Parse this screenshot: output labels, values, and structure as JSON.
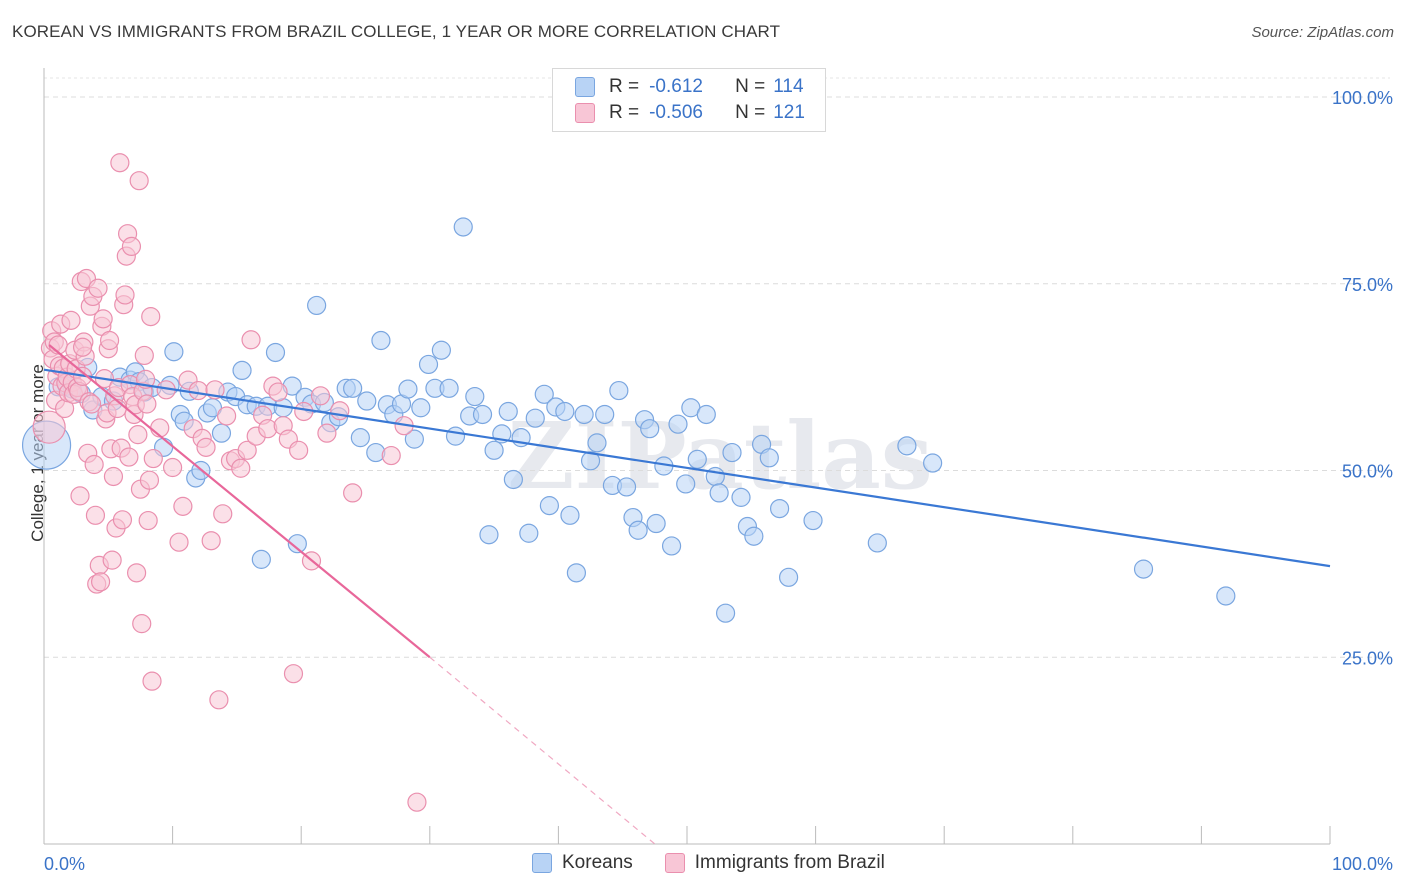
{
  "title": "KOREAN VS IMMIGRANTS FROM BRAZIL COLLEGE, 1 YEAR OR MORE CORRELATION CHART",
  "source": "Source: ZipAtlas.com",
  "watermark": "ZIPatlas",
  "legend": {
    "r_label": "R =",
    "n_label": "N =",
    "rows": [
      {
        "r": "-0.612",
        "n": "114",
        "fill": "#b8d3f5",
        "stroke": "#7aa6e0"
      },
      {
        "r": "-0.506",
        "n": "121",
        "fill": "#f8c6d6",
        "stroke": "#ea8fae"
      }
    ]
  },
  "bottom_legend": [
    {
      "label": "Koreans",
      "fill": "#b8d3f5",
      "stroke": "#7aa6e0"
    },
    {
      "label": "Immigrants from Brazil",
      "fill": "#f8c6d6",
      "stroke": "#ea8fae"
    }
  ],
  "chart_data": {
    "type": "scatter",
    "title": "KOREAN VS IMMIGRANTS FROM BRAZIL COLLEGE, 1 YEAR OR MORE CORRELATION CHART",
    "xlabel": "",
    "ylabel": "College, 1 year or more",
    "xlim": [
      0,
      100
    ],
    "ylim": [
      0,
      100
    ],
    "x_tick_labels": [
      "0.0%",
      "100.0%"
    ],
    "y_tick_labels": [
      "100.0%",
      "75.0%",
      "50.0%",
      "25.0%"
    ],
    "y_ticks": [
      100,
      75,
      50,
      25
    ],
    "grid": true,
    "legend_position": "top-center",
    "colors": {
      "koreans": "#3a78d4",
      "brazil": "#e8679a"
    },
    "series": [
      {
        "name": "Koreans",
        "color": "#3a78d4",
        "trend": {
          "x": [
            0,
            100
          ],
          "y": [
            63.5,
            37.2
          ]
        },
        "points": [
          [
            0.2,
            53.4
          ],
          [
            1.1,
            61.2
          ],
          [
            1.8,
            61.3
          ],
          [
            2.2,
            60.9
          ],
          [
            2.9,
            60.3
          ],
          [
            3.4,
            63.8
          ],
          [
            3.8,
            58.1
          ],
          [
            4.5,
            59.9
          ],
          [
            5.4,
            59.3
          ],
          [
            5.9,
            62.5
          ],
          [
            6.7,
            62.1
          ],
          [
            7.1,
            63.2
          ],
          [
            7.4,
            61.9
          ],
          [
            7.8,
            60.5
          ],
          [
            8.4,
            61.1
          ],
          [
            9.3,
            53.1
          ],
          [
            9.8,
            61.4
          ],
          [
            10.1,
            65.9
          ],
          [
            10.6,
            57.5
          ],
          [
            10.9,
            56.6
          ],
          [
            11.3,
            60.6
          ],
          [
            11.8,
            49.0
          ],
          [
            12.2,
            50.0
          ],
          [
            12.7,
            57.7
          ],
          [
            13.1,
            58.4
          ],
          [
            13.8,
            55.0
          ],
          [
            14.3,
            60.5
          ],
          [
            14.9,
            59.9
          ],
          [
            15.4,
            63.4
          ],
          [
            15.8,
            58.8
          ],
          [
            16.5,
            58.6
          ],
          [
            16.9,
            38.1
          ],
          [
            17.4,
            58.6
          ],
          [
            18.0,
            65.8
          ],
          [
            18.6,
            58.4
          ],
          [
            19.3,
            61.3
          ],
          [
            19.7,
            40.2
          ],
          [
            20.3,
            59.8
          ],
          [
            20.8,
            58.9
          ],
          [
            21.2,
            72.1
          ],
          [
            21.8,
            59.1
          ],
          [
            22.3,
            56.4
          ],
          [
            22.9,
            57.2
          ],
          [
            23.5,
            61.0
          ],
          [
            24.0,
            61.0
          ],
          [
            24.6,
            54.4
          ],
          [
            25.1,
            59.3
          ],
          [
            25.8,
            52.4
          ],
          [
            26.2,
            67.4
          ],
          [
            26.7,
            58.8
          ],
          [
            27.2,
            57.5
          ],
          [
            27.8,
            58.9
          ],
          [
            28.3,
            60.9
          ],
          [
            28.8,
            54.2
          ],
          [
            29.3,
            58.4
          ],
          [
            29.9,
            64.2
          ],
          [
            30.4,
            61.0
          ],
          [
            30.9,
            66.1
          ],
          [
            31.5,
            61.0
          ],
          [
            32.0,
            54.6
          ],
          [
            32.6,
            82.6
          ],
          [
            33.1,
            57.3
          ],
          [
            33.5,
            59.9
          ],
          [
            34.1,
            57.5
          ],
          [
            34.6,
            41.4
          ],
          [
            35.0,
            52.7
          ],
          [
            35.6,
            54.9
          ],
          [
            36.1,
            57.9
          ],
          [
            36.5,
            48.8
          ],
          [
            37.1,
            54.4
          ],
          [
            37.7,
            41.6
          ],
          [
            38.2,
            57.0
          ],
          [
            38.9,
            60.2
          ],
          [
            39.3,
            45.3
          ],
          [
            39.8,
            58.5
          ],
          [
            40.5,
            57.9
          ],
          [
            40.9,
            44.0
          ],
          [
            41.4,
            36.3
          ],
          [
            42.0,
            57.5
          ],
          [
            42.5,
            51.3
          ],
          [
            43.0,
            53.7
          ],
          [
            43.6,
            57.5
          ],
          [
            44.2,
            48.0
          ],
          [
            44.7,
            60.7
          ],
          [
            45.3,
            47.8
          ],
          [
            45.8,
            43.7
          ],
          [
            46.2,
            42.0
          ],
          [
            46.7,
            56.8
          ],
          [
            47.1,
            55.6
          ],
          [
            47.6,
            42.9
          ],
          [
            48.2,
            50.6
          ],
          [
            48.8,
            39.9
          ],
          [
            49.3,
            56.2
          ],
          [
            49.9,
            48.2
          ],
          [
            50.3,
            58.4
          ],
          [
            50.8,
            51.5
          ],
          [
            51.5,
            57.5
          ],
          [
            52.2,
            49.2
          ],
          [
            52.5,
            47.0
          ],
          [
            53.0,
            30.9
          ],
          [
            53.5,
            52.4
          ],
          [
            54.2,
            46.4
          ],
          [
            54.7,
            42.5
          ],
          [
            55.2,
            41.2
          ],
          [
            55.8,
            53.5
          ],
          [
            56.4,
            51.7
          ],
          [
            57.2,
            44.9
          ],
          [
            57.9,
            35.7
          ],
          [
            59.8,
            43.3
          ],
          [
            64.8,
            40.3
          ],
          [
            67.1,
            53.3
          ],
          [
            69.1,
            51.0
          ],
          [
            85.5,
            36.8
          ],
          [
            91.9,
            33.2
          ]
        ]
      },
      {
        "name": "Immigrants from Brazil",
        "color": "#e8679a",
        "trend": {
          "x": [
            0.4,
            30.0
          ],
          "y": [
            66.8,
            25.0
          ]
        },
        "trend_dashed": {
          "x": [
            30.0,
            47.5
          ],
          "y": [
            25.0,
            0.0
          ]
        },
        "points": [
          [
            0.4,
            55.8
          ],
          [
            0.5,
            66.4
          ],
          [
            0.6,
            68.7
          ],
          [
            0.7,
            64.9
          ],
          [
            0.8,
            67.2
          ],
          [
            0.9,
            59.4
          ],
          [
            1.0,
            62.6
          ],
          [
            1.1,
            66.8
          ],
          [
            1.2,
            64.0
          ],
          [
            1.3,
            69.6
          ],
          [
            1.4,
            61.3
          ],
          [
            1.5,
            63.7
          ],
          [
            1.6,
            58.3
          ],
          [
            1.7,
            61.7
          ],
          [
            1.8,
            62.5
          ],
          [
            1.9,
            60.4
          ],
          [
            2.0,
            64.3
          ],
          [
            2.1,
            70.1
          ],
          [
            2.2,
            61.8
          ],
          [
            2.3,
            60.2
          ],
          [
            2.4,
            66.1
          ],
          [
            2.5,
            63.6
          ],
          [
            2.6,
            61.1
          ],
          [
            2.7,
            60.6
          ],
          [
            2.8,
            46.6
          ],
          [
            2.9,
            75.3
          ],
          [
            3.0,
            62.6
          ],
          [
            3.1,
            67.2
          ],
          [
            3.2,
            65.3
          ],
          [
            3.3,
            75.7
          ],
          [
            3.4,
            52.3
          ],
          [
            3.5,
            59.2
          ],
          [
            3.6,
            72.0
          ],
          [
            3.7,
            58.9
          ],
          [
            3.8,
            73.3
          ],
          [
            3.9,
            50.8
          ],
          [
            4.0,
            44.0
          ],
          [
            4.1,
            34.8
          ],
          [
            4.2,
            74.4
          ],
          [
            4.3,
            37.3
          ],
          [
            4.4,
            35.1
          ],
          [
            4.5,
            69.3
          ],
          [
            4.6,
            70.3
          ],
          [
            4.7,
            62.3
          ],
          [
            4.8,
            56.9
          ],
          [
            4.9,
            57.7
          ],
          [
            5.0,
            66.3
          ],
          [
            5.1,
            67.4
          ],
          [
            5.2,
            52.9
          ],
          [
            5.3,
            38.0
          ],
          [
            5.4,
            49.2
          ],
          [
            5.5,
            60.0
          ],
          [
            5.6,
            42.3
          ],
          [
            5.7,
            58.3
          ],
          [
            5.8,
            61.1
          ],
          [
            5.9,
            91.2
          ],
          [
            6.0,
            53.0
          ],
          [
            6.1,
            43.4
          ],
          [
            6.2,
            72.2
          ],
          [
            6.3,
            73.5
          ],
          [
            6.4,
            78.7
          ],
          [
            6.5,
            81.7
          ],
          [
            6.6,
            51.8
          ],
          [
            6.7,
            61.5
          ],
          [
            6.8,
            80.0
          ],
          [
            6.9,
            59.9
          ],
          [
            7.0,
            57.5
          ],
          [
            7.1,
            58.8
          ],
          [
            7.2,
            36.3
          ],
          [
            7.3,
            54.8
          ],
          [
            7.4,
            88.8
          ],
          [
            7.5,
            47.5
          ],
          [
            7.6,
            29.5
          ],
          [
            7.7,
            60.6
          ],
          [
            7.8,
            65.4
          ],
          [
            7.9,
            62.2
          ],
          [
            8.0,
            58.9
          ],
          [
            8.1,
            43.3
          ],
          [
            8.2,
            48.7
          ],
          [
            8.3,
            70.6
          ],
          [
            8.4,
            21.8
          ],
          [
            8.5,
            51.6
          ],
          [
            9.0,
            55.7
          ],
          [
            9.5,
            60.8
          ],
          [
            10.0,
            50.4
          ],
          [
            10.5,
            40.4
          ],
          [
            10.8,
            45.2
          ],
          [
            11.2,
            62.1
          ],
          [
            11.6,
            55.6
          ],
          [
            12.0,
            60.7
          ],
          [
            12.3,
            54.3
          ],
          [
            12.6,
            53.1
          ],
          [
            13.0,
            40.6
          ],
          [
            13.3,
            60.8
          ],
          [
            13.6,
            19.3
          ],
          [
            13.9,
            44.2
          ],
          [
            14.2,
            57.3
          ],
          [
            14.5,
            51.3
          ],
          [
            14.9,
            51.6
          ],
          [
            15.3,
            50.3
          ],
          [
            15.8,
            52.7
          ],
          [
            16.1,
            67.5
          ],
          [
            16.5,
            54.6
          ],
          [
            17.0,
            57.4
          ],
          [
            17.4,
            55.6
          ],
          [
            17.8,
            61.3
          ],
          [
            18.2,
            60.5
          ],
          [
            18.6,
            56.0
          ],
          [
            19.0,
            54.2
          ],
          [
            19.4,
            22.8
          ],
          [
            19.8,
            52.7
          ],
          [
            20.2,
            57.9
          ],
          [
            20.8,
            37.9
          ],
          [
            21.5,
            60.0
          ],
          [
            22.0,
            55.0
          ],
          [
            23.0,
            58.0
          ],
          [
            24.0,
            47.0
          ],
          [
            27.0,
            52.0
          ],
          [
            28.0,
            56.0
          ],
          [
            29.0,
            5.6
          ],
          [
            3.0,
            66.5
          ]
        ]
      }
    ]
  }
}
